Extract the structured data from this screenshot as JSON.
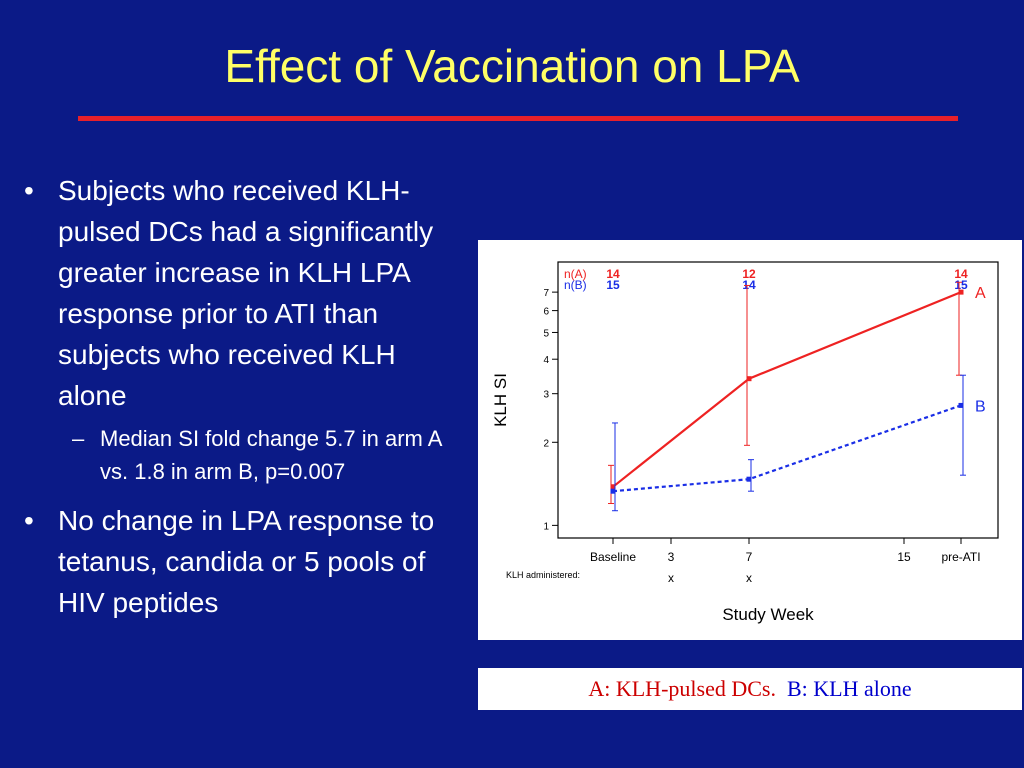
{
  "slide": {
    "title": "Effect of Vaccination on LPA",
    "bullets": [
      {
        "marker": "•",
        "text": "Subjects who received KLH-pulsed DCs had a significantly greater increase in KLH LPA response prior to ATI than subjects who received KLH alone"
      },
      {
        "marker": "–",
        "text": "Median SI fold change 5.7 in arm A vs. 1.8 in arm B, p=0.007"
      },
      {
        "marker": "•",
        "text": "No change in LPA response to tetanus, candida or 5 pools of HIV peptides"
      }
    ],
    "caption": {
      "a_text": "A: KLH-pulsed DCs.",
      "b_text": "B: KLH alone"
    }
  },
  "colors": {
    "background": "#0b1a87",
    "title": "#ffff66",
    "rule": "#e8202a",
    "series_a": "#ee2222",
    "series_b": "#1a2ee6"
  },
  "chart_data": {
    "type": "line",
    "xlabel": "Study Week",
    "ylabel": "KLH SI",
    "yscale": "log",
    "ylim": [
      0.9,
      9
    ],
    "y_ticks": [
      1,
      2,
      3,
      4,
      5,
      6,
      7
    ],
    "x_ticks": [
      "Baseline",
      "3",
      "7",
      "15",
      "pre-ATI"
    ],
    "klh_label": "KLH administered:",
    "klh_marks": [
      {
        "x": "3",
        "mark": "x"
      },
      {
        "x": "7",
        "mark": "x"
      }
    ],
    "series": [
      {
        "name": "A",
        "n_label": "n(A)",
        "line": "solid",
        "points": [
          {
            "x": "Baseline",
            "y": 1.38,
            "low": 1.2,
            "high": 1.65,
            "n": "14"
          },
          {
            "x": "7",
            "y": 3.4,
            "low": 1.95,
            "high": 7.4,
            "n": "12"
          },
          {
            "x": "pre-ATI",
            "y": 7.0,
            "low": 3.5,
            "high": 7.6,
            "n": "14"
          }
        ]
      },
      {
        "name": "B",
        "n_label": "n(B)",
        "line": "dashed",
        "points": [
          {
            "x": "Baseline",
            "y": 1.33,
            "low": 1.13,
            "high": 2.35,
            "n": "15"
          },
          {
            "x": "7",
            "y": 1.47,
            "low": 1.33,
            "high": 1.73,
            "n": "14"
          },
          {
            "x": "pre-ATI",
            "y": 2.72,
            "low": 1.52,
            "high": 3.5,
            "n": "15"
          }
        ]
      }
    ]
  }
}
